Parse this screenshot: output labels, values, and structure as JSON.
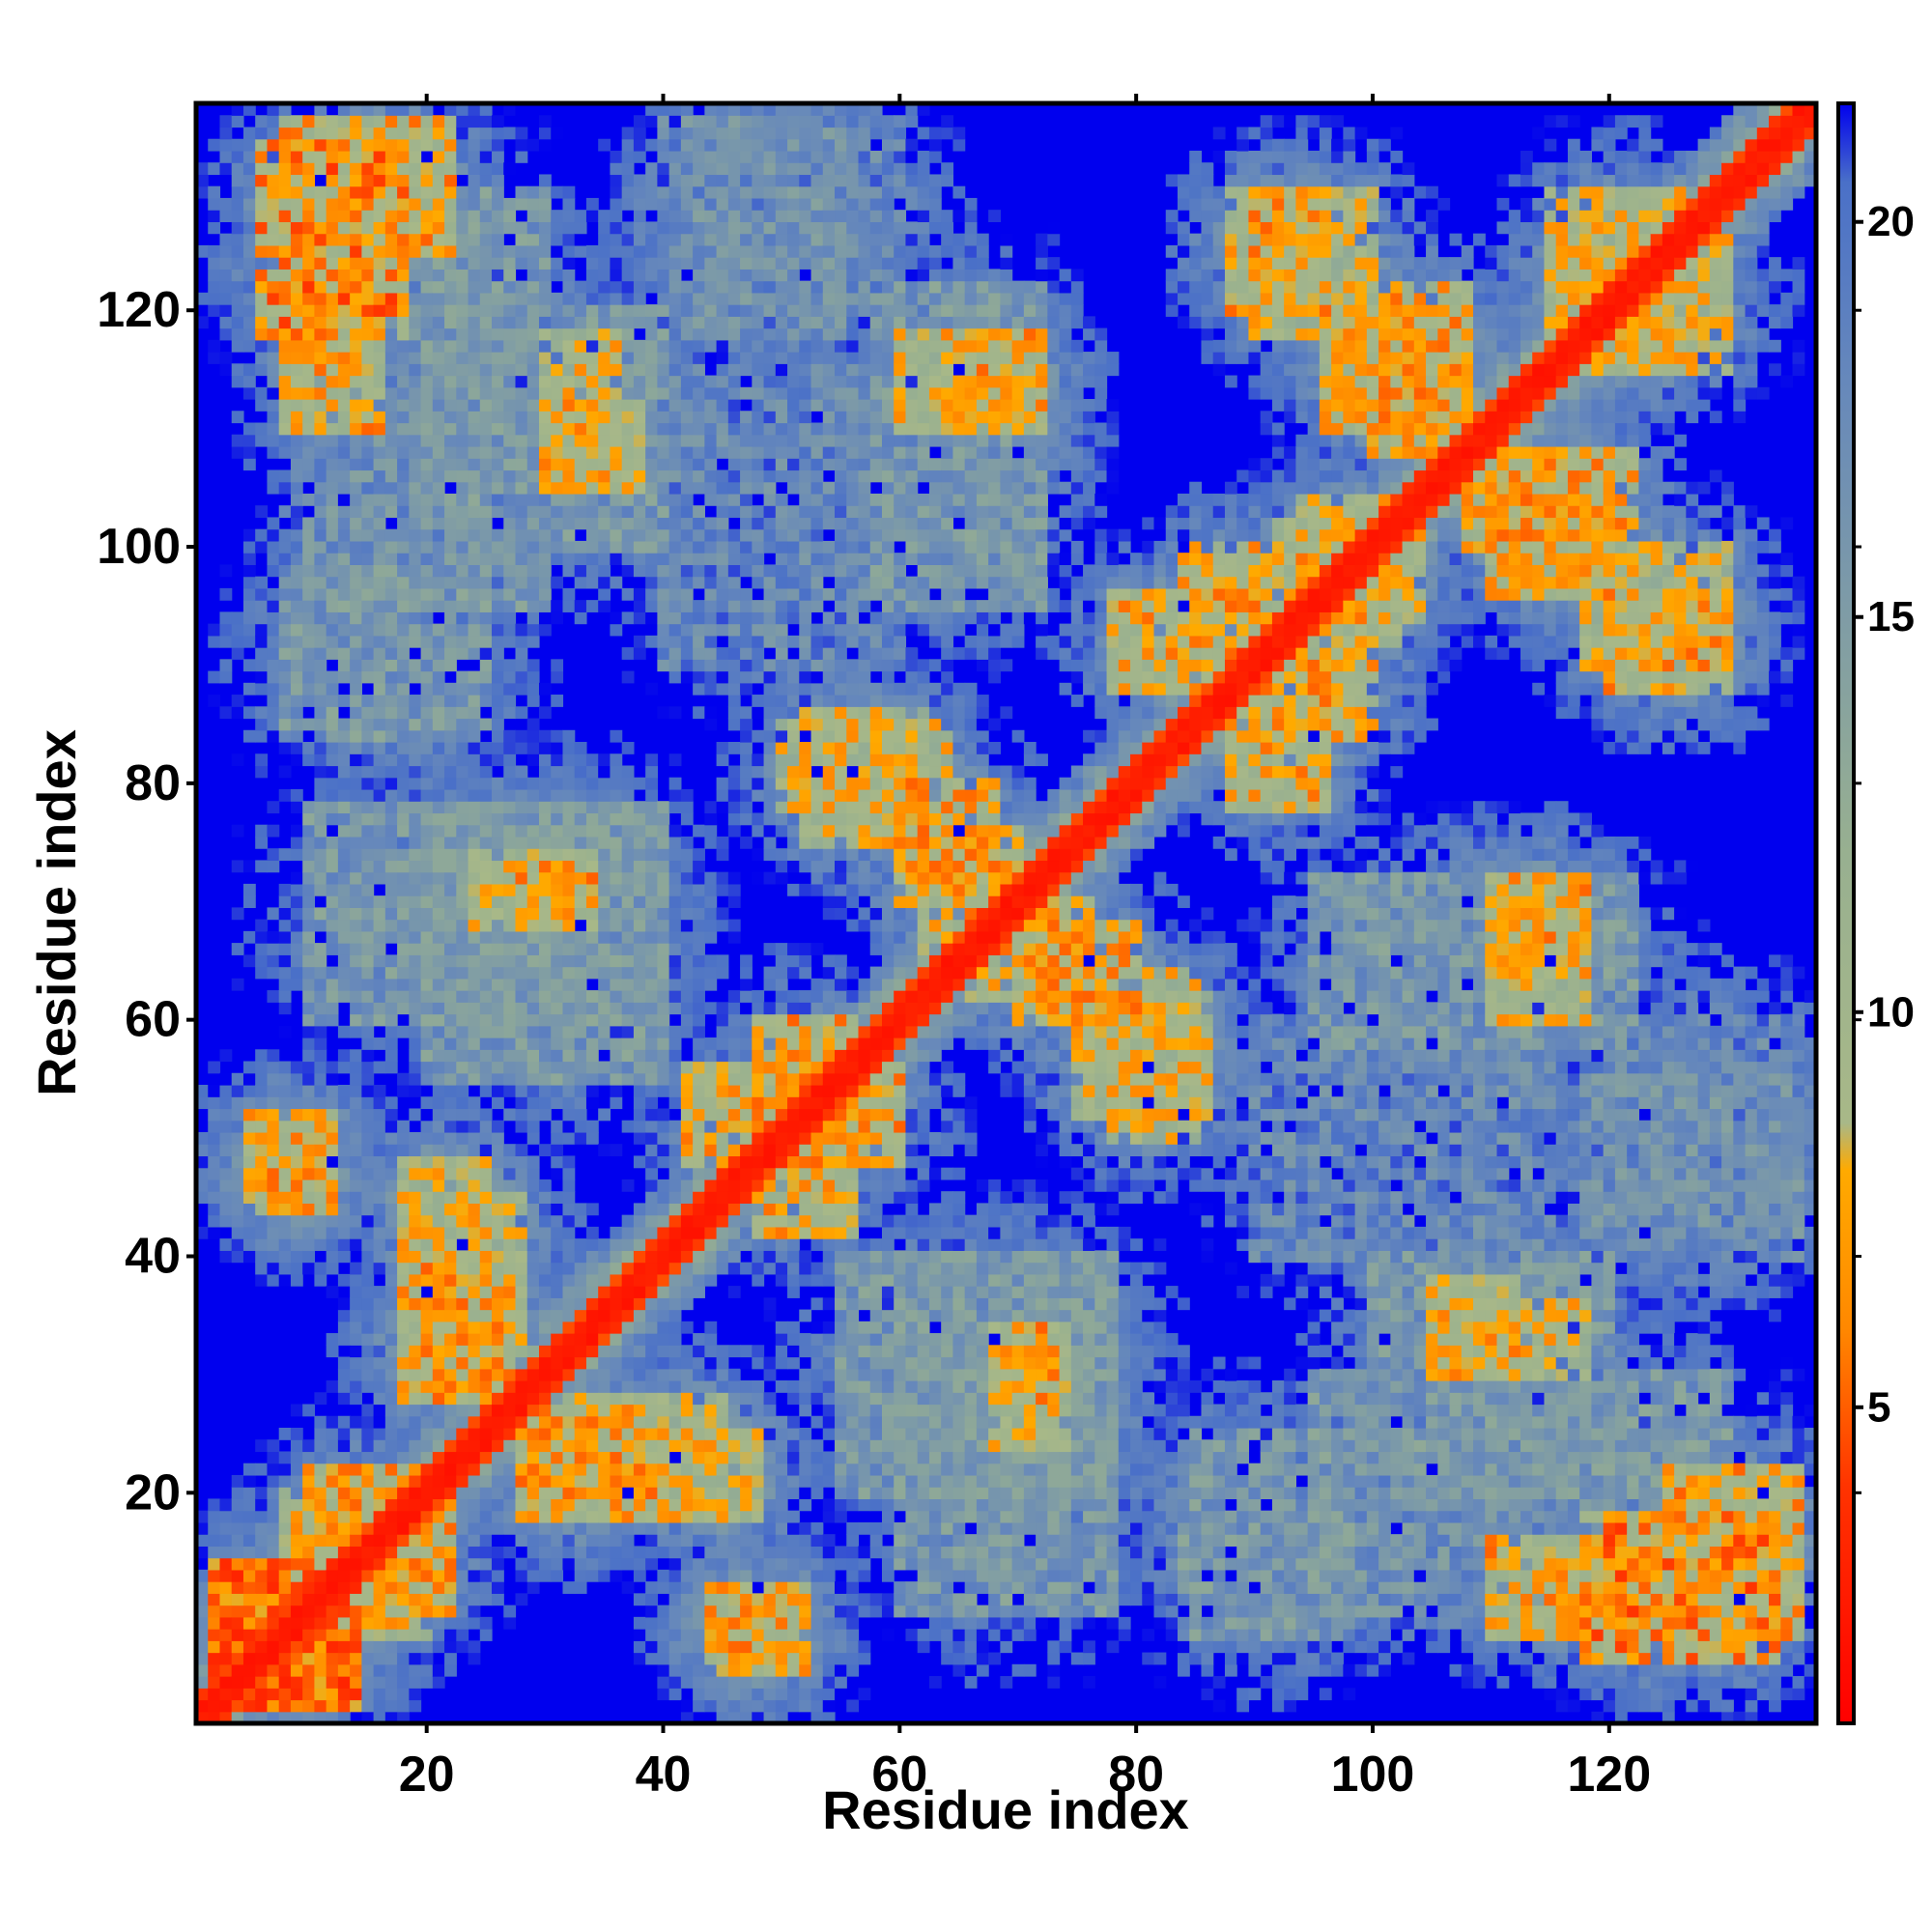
{
  "chart_data": {
    "type": "heatmap",
    "title": "",
    "xlabel": "Residue index",
    "ylabel": "Residue index",
    "n_residues": 137,
    "xlim": [
      1,
      137
    ],
    "ylim": [
      1,
      137
    ],
    "x_ticks": [
      20,
      40,
      60,
      80,
      100,
      120
    ],
    "y_ticks": [
      20,
      40,
      60,
      80,
      100,
      120
    ],
    "colorbar": {
      "ticks": [
        5,
        10,
        15,
        20
      ],
      "range": [
        1,
        21.5
      ],
      "stops": [
        {
          "value": 1.0,
          "color": "#ff0000"
        },
        {
          "value": 4.0,
          "color": "#ff3300"
        },
        {
          "value": 6.0,
          "color": "#ff8800"
        },
        {
          "value": 8.0,
          "color": "#ffaa00"
        },
        {
          "value": 8.6,
          "color": "#a8b888"
        },
        {
          "value": 12.0,
          "color": "#98b090"
        },
        {
          "value": 18.0,
          "color": "#6688bb"
        },
        {
          "value": 20.5,
          "color": "#4a70c8"
        },
        {
          "value": 21.5,
          "color": "#0000ee"
        }
      ]
    },
    "background_color": "#0000ee",
    "diagonal": {
      "width_residues": 2.5,
      "description": "self-contacts, distance < 4"
    },
    "contact_regions": [
      {
        "x": [
          2,
          14
        ],
        "y": [
          2,
          14
        ],
        "dist": 3
      },
      {
        "x": [
          8,
          16
        ],
        "y": [
          110,
          136
        ],
        "dist": 5
      },
      {
        "x": [
          10,
          22
        ],
        "y": [
          125,
          136
        ],
        "dist": 5
      },
      {
        "x": [
          20,
          30
        ],
        "y": [
          95,
          130
        ],
        "dist": 13
      },
      {
        "x": [
          8,
          25
        ],
        "y": [
          84,
          98
        ],
        "dist": 13
      },
      {
        "x": [
          30,
          36
        ],
        "y": [
          105,
          118
        ],
        "dist": 6
      },
      {
        "x": [
          25,
          40
        ],
        "y": [
          100,
          120
        ],
        "dist": 13
      },
      {
        "x": [
          42,
          55
        ],
        "y": [
          118,
          136
        ],
        "dist": 14
      },
      {
        "x": [
          40,
          60
        ],
        "y": [
          90,
          115
        ],
        "dist": 15
      },
      {
        "x": [
          60,
          70
        ],
        "y": [
          110,
          118
        ],
        "dist": 6
      },
      {
        "x": [
          58,
          72
        ],
        "y": [
          95,
          122
        ],
        "dist": 13
      },
      {
        "x": [
          5,
          12
        ],
        "y": [
          44,
          52
        ],
        "dist": 5
      },
      {
        "x": [
          18,
          28
        ],
        "y": [
          28,
          40
        ],
        "dist": 5
      },
      {
        "x": [
          18,
          25
        ],
        "y": [
          42,
          48
        ],
        "dist": 6
      },
      {
        "x": [
          28,
          34
        ],
        "y": [
          68,
          74
        ],
        "dist": 5
      },
      {
        "x": [
          20,
          40
        ],
        "y": [
          55,
          78
        ],
        "dist": 13
      },
      {
        "x": [
          10,
          20
        ],
        "y": [
          8,
          22
        ],
        "dist": 5
      },
      {
        "x": [
          28,
          38
        ],
        "y": [
          18,
          26
        ],
        "dist": 5
      },
      {
        "x": [
          40,
          45
        ],
        "y": [
          18,
          28
        ],
        "dist": 6
      },
      {
        "x": [
          44,
          50
        ],
        "y": [
          6,
          12
        ],
        "dist": 5
      },
      {
        "x": [
          60,
          78
        ],
        "y": [
          10,
          40
        ],
        "dist": 13
      },
      {
        "x": [
          68,
          74
        ],
        "y": [
          24,
          32
        ],
        "dist": 6
      },
      {
        "x": [
          48,
          56
        ],
        "y": [
          42,
          60
        ],
        "dist": 5
      },
      {
        "x": [
          52,
          62
        ],
        "y": [
          75,
          86
        ],
        "dist": 6
      },
      {
        "x": [
          62,
          70
        ],
        "y": [
          66,
          76
        ],
        "dist": 5
      },
      {
        "x": [
          70,
          80
        ],
        "y": [
          60,
          68
        ],
        "dist": 5
      },
      {
        "x": [
          78,
          85
        ],
        "y": [
          50,
          64
        ],
        "dist": 6
      },
      {
        "x": [
          84,
          94
        ],
        "y": [
          90,
          100
        ],
        "dist": 5
      },
      {
        "x": [
          88,
          96
        ],
        "y": [
          78,
          90
        ],
        "dist": 5
      },
      {
        "x": [
          92,
          104
        ],
        "y": [
          94,
          102
        ],
        "dist": 6
      },
      {
        "x": [
          90,
          100
        ],
        "y": [
          118,
          130
        ],
        "dist": 6
      },
      {
        "x": [
          100,
          108
        ],
        "y": [
          108,
          122
        ],
        "dist": 5
      },
      {
        "x": [
          110,
          120
        ],
        "y": [
          96,
          106
        ],
        "dist": 5
      },
      {
        "x": [
          120,
          130
        ],
        "y": [
          88,
          96
        ],
        "dist": 5
      },
      {
        "x": [
          110,
          118
        ],
        "y": [
          64,
          72
        ],
        "dist": 5
      },
      {
        "x": [
          105,
          112
        ],
        "y": [
          30,
          38
        ],
        "dist": 5
      },
      {
        "x": [
          118,
          134
        ],
        "y": [
          6,
          18
        ],
        "dist": 4
      },
      {
        "x": [
          95,
          125
        ],
        "y": [
          10,
          25
        ],
        "dist": 14
      },
      {
        "x": [
          120,
          136
        ],
        "y": [
          40,
          60
        ],
        "dist": 15
      },
      {
        "x": [
          115,
          130
        ],
        "y": [
          115,
          126
        ],
        "dist": 6
      }
    ]
  }
}
